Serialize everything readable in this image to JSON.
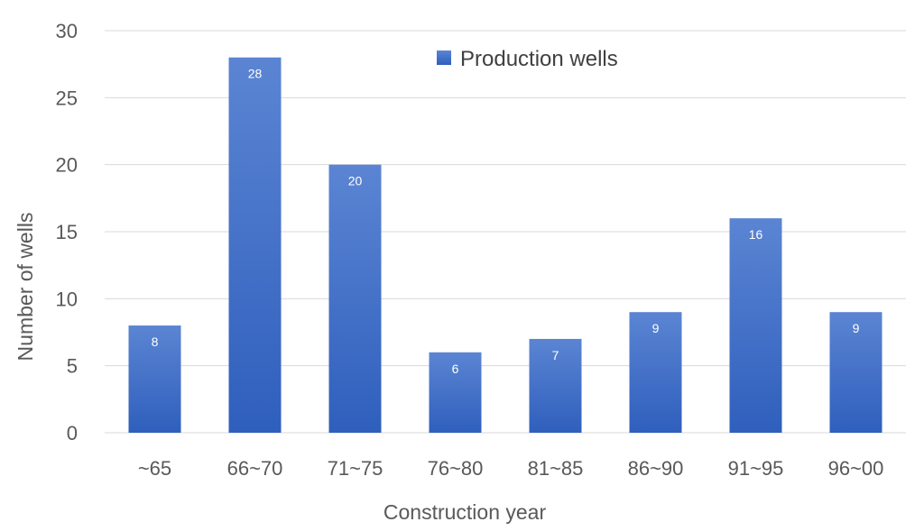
{
  "chart_data": {
    "type": "bar",
    "xlabel": "Construction year",
    "ylabel": "Number of wells",
    "categories": [
      "~65",
      "66~70",
      "71~75",
      "76~80",
      "81~85",
      "86~90",
      "91~95",
      "96~00"
    ],
    "series": [
      {
        "name": "Production wells",
        "values": [
          8,
          28,
          20,
          6,
          7,
          9,
          16,
          9
        ],
        "color": "#4472c4"
      }
    ],
    "ylim": [
      0,
      30
    ],
    "yticks": [
      0,
      5,
      10,
      15,
      20,
      25,
      30
    ],
    "grid": true,
    "legend_position": "top-center",
    "data_labels": true
  }
}
